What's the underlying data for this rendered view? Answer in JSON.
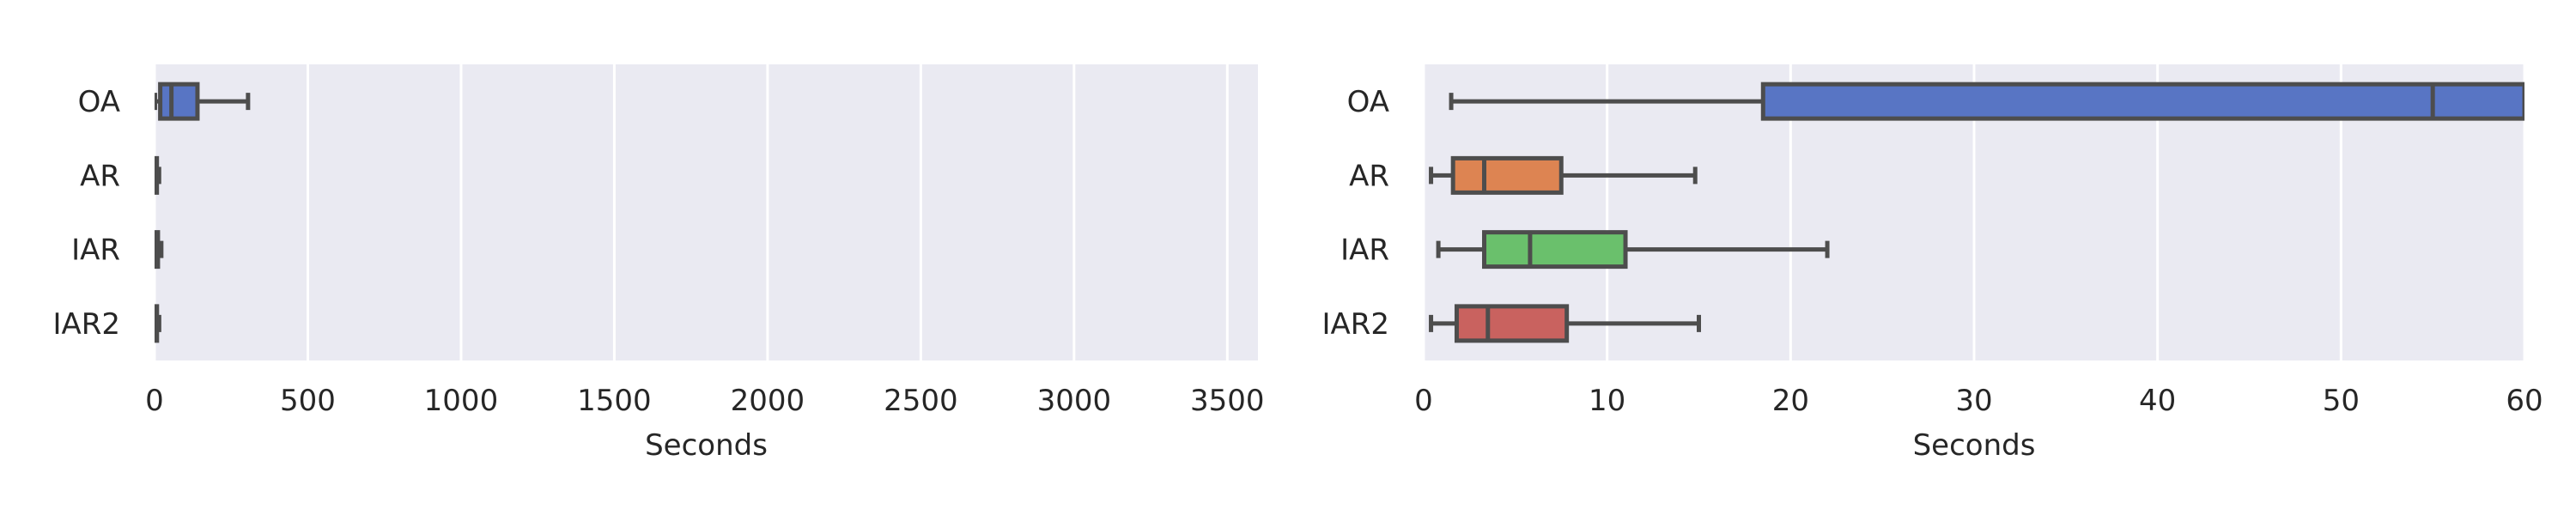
{
  "chart_data": [
    {
      "type": "box",
      "orientation": "horizontal",
      "xlabel": "Seconds",
      "ylabel": "",
      "xlim": [
        0,
        3600
      ],
      "xticks": [
        "0",
        "500",
        "1000",
        "1500",
        "2000",
        "2500",
        "3000",
        "3500"
      ],
      "xtick_values": [
        0,
        500,
        1000,
        1500,
        2000,
        2500,
        3000,
        3500
      ],
      "grid": true,
      "background": "#eaeaf2",
      "categories": [
        "OA",
        "AR",
        "IAR",
        "IAR2"
      ],
      "series": [
        {
          "category": "OA",
          "whisker_low": 1.5,
          "q1": 18.5,
          "median": 55,
          "q3": 140,
          "whisker_high": 305,
          "color": "#5875c4"
        },
        {
          "category": "AR",
          "whisker_low": 0.4,
          "q1": 1.6,
          "median": 3.3,
          "q3": 7.5,
          "whisker_high": 14.8,
          "color": "#dd8452"
        },
        {
          "category": "IAR",
          "whisker_low": 0.8,
          "q1": 3.3,
          "median": 5.8,
          "q3": 11,
          "whisker_high": 22,
          "color": "#6ac06c"
        },
        {
          "category": "IAR2",
          "whisker_low": 0.4,
          "q1": 1.8,
          "median": 3.5,
          "q3": 7.8,
          "whisker_high": 15,
          "color": "#c9625f"
        }
      ]
    },
    {
      "type": "box",
      "orientation": "horizontal",
      "xlabel": "Seconds",
      "ylabel": "",
      "xlim": [
        0,
        60
      ],
      "xticks": [
        "0",
        "10",
        "20",
        "30",
        "40",
        "50",
        "60"
      ],
      "xtick_values": [
        0,
        10,
        20,
        30,
        40,
        50,
        60
      ],
      "grid": true,
      "background": "#eaeaf2",
      "categories": [
        "OA",
        "AR",
        "IAR",
        "IAR2"
      ],
      "series": [
        {
          "category": "OA",
          "whisker_low": 1.5,
          "q1": 18.5,
          "median": 55,
          "q3": 140,
          "whisker_high": 305,
          "color": "#5875c4"
        },
        {
          "category": "AR",
          "whisker_low": 0.4,
          "q1": 1.6,
          "median": 3.3,
          "q3": 7.5,
          "whisker_high": 14.8,
          "color": "#dd8452"
        },
        {
          "category": "IAR",
          "whisker_low": 0.8,
          "q1": 3.3,
          "median": 5.8,
          "q3": 11,
          "whisker_high": 22,
          "color": "#6ac06c"
        },
        {
          "category": "IAR2",
          "whisker_low": 0.4,
          "q1": 1.8,
          "median": 3.5,
          "q3": 7.8,
          "whisker_high": 15,
          "color": "#c9625f"
        }
      ]
    }
  ],
  "style": {
    "edge_color": "#4d4d4d",
    "grid_color": "#ffffff"
  }
}
